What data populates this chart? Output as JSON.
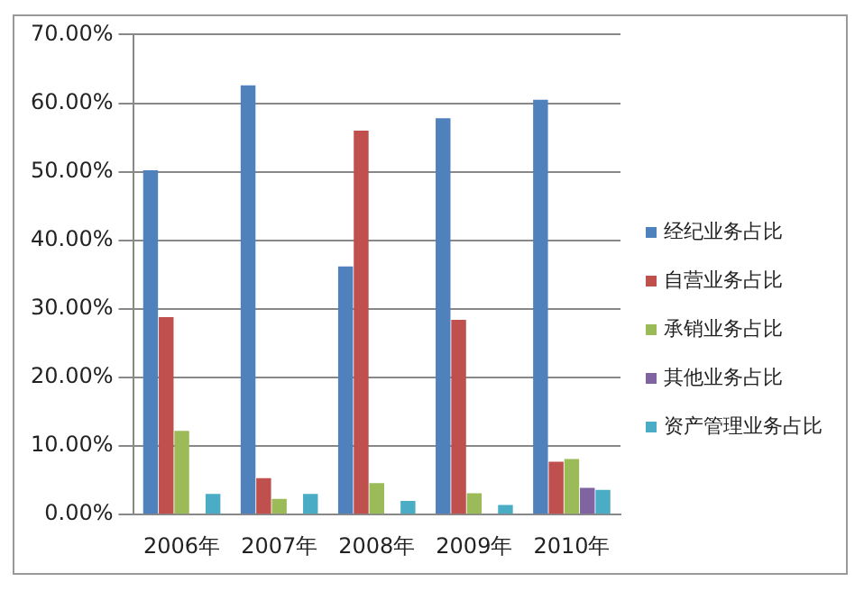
{
  "chart_data": {
    "type": "bar",
    "categories": [
      "2006年",
      "2007年",
      "2008年",
      "2009年",
      "2010年"
    ],
    "series": [
      {
        "name": "经纪业务占比",
        "color": "#4f81bd",
        "values": [
          50.2,
          62.6,
          36.2,
          57.8,
          60.5
        ]
      },
      {
        "name": "自营业务占比",
        "color": "#c0504d",
        "values": [
          28.8,
          5.3,
          56.0,
          28.4,
          7.7
        ]
      },
      {
        "name": "承销业务占比",
        "color": "#9bbb59",
        "values": [
          12.2,
          2.3,
          4.6,
          3.1,
          8.1
        ]
      },
      {
        "name": "其他业务占比",
        "color": "#8064a2",
        "values": [
          null,
          null,
          null,
          null,
          3.9
        ]
      },
      {
        "name": "资产管理业务占比",
        "color": "#4bacc6",
        "values": [
          3.0,
          3.0,
          2.0,
          1.4,
          3.6
        ]
      }
    ],
    "ylim": [
      0,
      70
    ],
    "yticks": [
      {
        "value": 0,
        "label": "0.00%"
      },
      {
        "value": 10,
        "label": "10.00%"
      },
      {
        "value": 20,
        "label": "20.00%"
      },
      {
        "value": 30,
        "label": "30.00%"
      },
      {
        "value": 40,
        "label": "40.00%"
      },
      {
        "value": 50,
        "label": "50.00%"
      },
      {
        "value": 60,
        "label": "60.00%"
      },
      {
        "value": 70,
        "label": "70.00%"
      }
    ],
    "grid": "y",
    "legend": "right"
  }
}
